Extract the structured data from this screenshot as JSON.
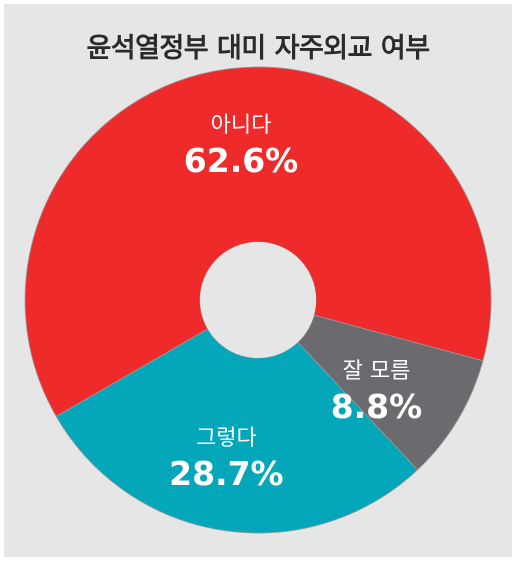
{
  "title": "윤석열정부 대미 자주외교 여부",
  "chart_data": {
    "type": "pie",
    "donut": true,
    "title": "윤석열정부 대미 자주외교 여부",
    "categories": [
      "아니다",
      "잘 모름",
      "그렇다"
    ],
    "values": [
      62.6,
      8.8,
      28.7
    ],
    "value_labels": [
      "62.6%",
      "8.8%",
      "28.7%"
    ],
    "colors": [
      "#ee2a2a",
      "#6b6b6f",
      "#04a6b9"
    ],
    "legend": "none"
  },
  "colors": {
    "background": "#e6e6e6",
    "hole": "#e6e6e6",
    "separator": "#9a9a9a"
  }
}
